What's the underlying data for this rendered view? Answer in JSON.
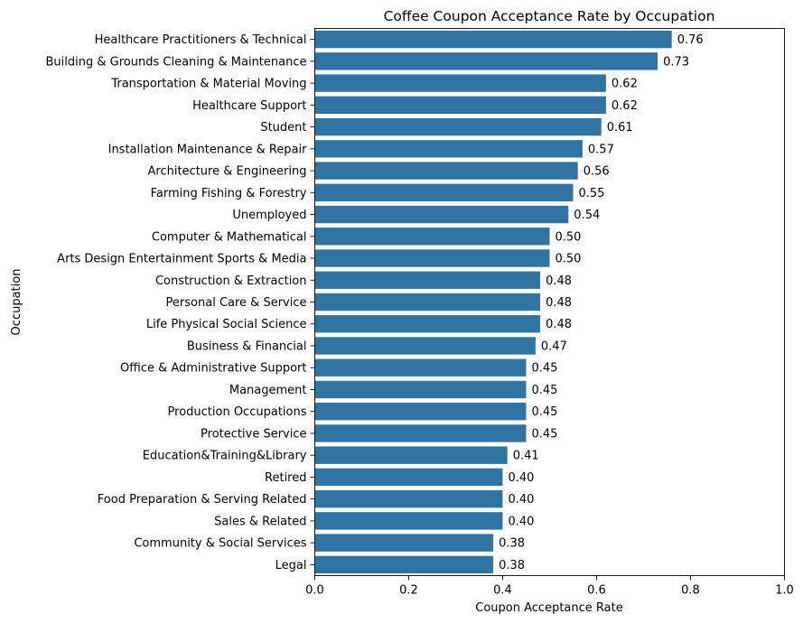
{
  "chart_data": {
    "type": "bar",
    "orientation": "horizontal",
    "title": "Coffee Coupon Acceptance Rate by Occupation",
    "xlabel": "Coupon Acceptance Rate",
    "ylabel": "Occupation",
    "xlim": [
      0,
      1.0
    ],
    "x_ticks": [
      "0.0",
      "0.2",
      "0.4",
      "0.6",
      "0.8",
      "1.0"
    ],
    "bar_color": "#3274a1",
    "grid": false,
    "categories": [
      "Healthcare Practitioners & Technical",
      "Building & Grounds Cleaning & Maintenance",
      "Transportation & Material Moving",
      "Healthcare Support",
      "Student",
      "Installation Maintenance & Repair",
      "Architecture & Engineering",
      "Farming Fishing & Forestry",
      "Unemployed",
      "Computer & Mathematical",
      "Arts Design Entertainment Sports & Media",
      "Construction & Extraction",
      "Personal Care & Service",
      "Life Physical Social Science",
      "Business & Financial",
      "Office & Administrative Support",
      "Management",
      "Production Occupations",
      "Protective Service",
      "Education&Training&Library",
      "Retired",
      "Food Preparation & Serving Related",
      "Sales & Related",
      "Community & Social Services",
      "Legal"
    ],
    "values": [
      0.76,
      0.73,
      0.62,
      0.62,
      0.61,
      0.57,
      0.56,
      0.55,
      0.54,
      0.5,
      0.5,
      0.48,
      0.48,
      0.48,
      0.47,
      0.45,
      0.45,
      0.45,
      0.45,
      0.41,
      0.4,
      0.4,
      0.4,
      0.38,
      0.38
    ],
    "value_labels": [
      "0.76",
      "0.73",
      "0.62",
      "0.62",
      "0.61",
      "0.57",
      "0.56",
      "0.55",
      "0.54",
      "0.50",
      "0.50",
      "0.48",
      "0.48",
      "0.48",
      "0.47",
      "0.45",
      "0.45",
      "0.45",
      "0.45",
      "0.41",
      "0.40",
      "0.40",
      "0.40",
      "0.38",
      "0.38"
    ]
  }
}
